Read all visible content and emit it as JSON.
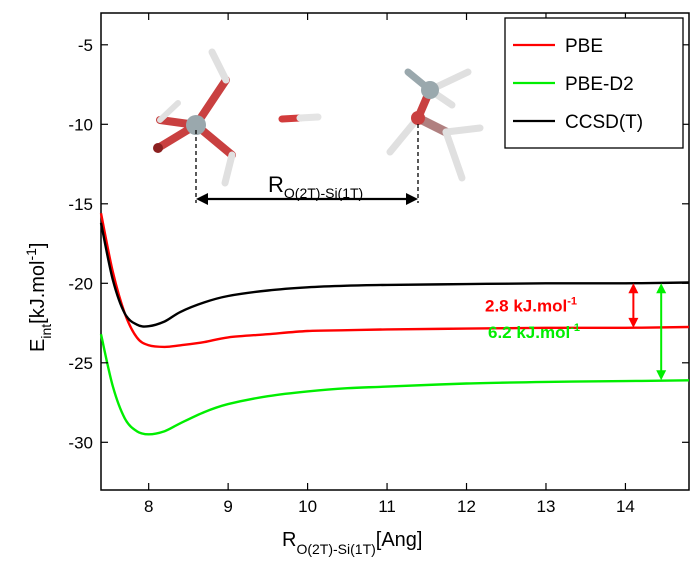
{
  "chart_data": {
    "type": "line",
    "xlabel": {
      "main": "R",
      "sub": "O(2T)-Si(1T)",
      "unit": "[Ang]"
    },
    "ylabel": {
      "main": "E",
      "sub": "int",
      "unit_main": "[kJ.mol",
      "unit_sup": "-1",
      "unit_end": "]"
    },
    "xlim": [
      7.4,
      14.8
    ],
    "ylim": [
      -33,
      -3
    ],
    "x_ticks": [
      8,
      9,
      10,
      11,
      12,
      13,
      14
    ],
    "y_ticks": [
      -30,
      -25,
      -20,
      -15,
      -10,
      -5
    ],
    "grid": false,
    "legend_position": "top-right",
    "series": [
      {
        "name": "PBE",
        "color": "#ff0000",
        "x": [
          7.4,
          7.55,
          7.7,
          7.85,
          8.0,
          8.2,
          8.4,
          8.7,
          9.0,
          9.5,
          10.0,
          10.5,
          11.0,
          12.0,
          13.0,
          14.0,
          14.8
        ],
        "y": [
          -15.6,
          -19.3,
          -21.9,
          -23.4,
          -23.9,
          -24.0,
          -23.9,
          -23.7,
          -23.4,
          -23.2,
          -23.0,
          -22.95,
          -22.9,
          -22.85,
          -22.8,
          -22.8,
          -22.75
        ]
      },
      {
        "name": "PBE-D2",
        "color": "#00ee00",
        "x": [
          7.4,
          7.55,
          7.7,
          7.85,
          8.0,
          8.2,
          8.4,
          8.7,
          9.0,
          9.5,
          10.0,
          10.5,
          11.0,
          12.0,
          13.0,
          14.0,
          14.8
        ],
        "y": [
          -23.2,
          -26.5,
          -28.5,
          -29.3,
          -29.5,
          -29.3,
          -28.8,
          -28.1,
          -27.6,
          -27.1,
          -26.8,
          -26.6,
          -26.5,
          -26.3,
          -26.2,
          -26.15,
          -26.1
        ]
      },
      {
        "name": "CCSD(T)",
        "color": "#000000",
        "x": [
          7.4,
          7.55,
          7.7,
          7.85,
          8.0,
          8.2,
          8.4,
          8.7,
          9.0,
          9.5,
          10.0,
          10.5,
          11.0,
          12.0,
          13.0,
          14.0,
          14.8
        ],
        "y": [
          -16.2,
          -19.8,
          -21.9,
          -22.6,
          -22.7,
          -22.4,
          -21.8,
          -21.2,
          -20.8,
          -20.45,
          -20.25,
          -20.15,
          -20.1,
          -20.05,
          -20.0,
          -20.0,
          -19.95
        ]
      }
    ],
    "annotations": [
      {
        "text_main": "2.8 kJ.mol",
        "text_sup": "-1",
        "color": "#ff0000",
        "x": 14.1,
        "from": -20.0,
        "to": -22.8
      },
      {
        "text_main": "6.2 kJ.mol",
        "text_sup": "-1",
        "color": "#00ee00",
        "x": 14.45,
        "from": -20.0,
        "to": -26.1
      }
    ],
    "distance_label": {
      "main": "R",
      "sub": "O(2T)-Si(1T)"
    }
  }
}
